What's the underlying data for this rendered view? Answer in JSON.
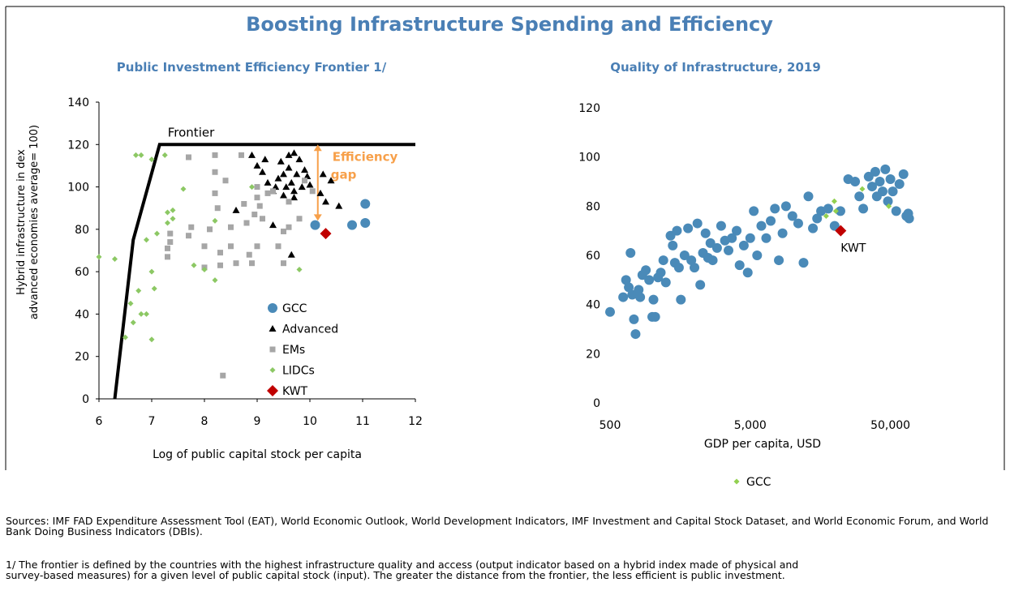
{
  "header": {
    "title": "Boosting Infrastructure Spending and Efficiency"
  },
  "chart_data": [
    {
      "type": "scatter",
      "title": "Public Investment Efficiency Frontier 1/",
      "xlabel": "Log of public capital stock per capita",
      "ylabel": [
        "Hybrid infrastructure in dex",
        "advanced economies average= 100)"
      ],
      "xlim": [
        6,
        12
      ],
      "ylim": [
        0,
        140
      ],
      "xticks": [
        6,
        7,
        8,
        9,
        10,
        11,
        12
      ],
      "yticks": [
        0,
        20,
        40,
        60,
        80,
        100,
        120,
        140
      ],
      "frontier": {
        "label": "Frontier",
        "color": "#000000",
        "x": [
          6.3,
          6.65,
          7.15,
          12
        ],
        "y": [
          0,
          75,
          120,
          120
        ]
      },
      "annotation": {
        "text": [
          "Efficiency",
          "gap"
        ],
        "color": "#f7a04a",
        "x": 10.15,
        "y": [
          120,
          84
        ]
      },
      "series": [
        {
          "name": "GCC",
          "color": "#4a8ab8",
          "marker": "circle",
          "x": [
            10.1,
            10.8,
            11.05,
            11.05
          ],
          "values": [
            82,
            82,
            83,
            92
          ]
        },
        {
          "name": "Advanced",
          "color": "#000000",
          "marker": "triangle",
          "x": [
            8.6,
            8.9,
            9.0,
            9.1,
            9.15,
            9.2,
            9.3,
            9.3,
            9.35,
            9.4,
            9.45,
            9.5,
            9.5,
            9.55,
            9.6,
            9.6,
            9.65,
            9.7,
            9.7,
            9.75,
            9.8,
            9.85,
            9.9,
            9.95,
            10.0,
            9.65,
            9.7,
            10.2,
            10.25,
            10.3,
            10.4,
            10.55
          ],
          "values": [
            89,
            115,
            110,
            107,
            113,
            102,
            82,
            98,
            100,
            104,
            112,
            96,
            106,
            100,
            115,
            109,
            102,
            98,
            95,
            106,
            113,
            100,
            108,
            105,
            101,
            68,
            116,
            97,
            106,
            93,
            103,
            91
          ]
        },
        {
          "name": "EMs",
          "color": "#a6a6a6",
          "marker": "square",
          "x": [
            7.3,
            7.35,
            7.35,
            7.3,
            7.7,
            7.7,
            7.75,
            8.0,
            8.0,
            8.1,
            8.2,
            8.2,
            8.2,
            8.25,
            8.3,
            8.3,
            8.35,
            8.4,
            8.5,
            8.5,
            8.6,
            8.7,
            8.75,
            8.8,
            8.85,
            8.9,
            8.95,
            9.0,
            9.0,
            9.0,
            9.05,
            9.1,
            9.2,
            9.3,
            9.4,
            9.5,
            9.5,
            9.6,
            9.6,
            9.9,
            10.05,
            9.8
          ],
          "values": [
            71,
            74,
            78,
            67,
            114,
            77,
            81,
            72,
            62,
            80,
            115,
            107,
            97,
            90,
            69,
            63,
            11,
            103,
            81,
            72,
            64,
            115,
            92,
            83,
            68,
            64,
            87,
            95,
            100,
            72,
            91,
            85,
            97,
            98,
            72,
            64,
            79,
            93,
            81,
            103,
            98,
            85
          ]
        },
        {
          "name": "LIDCs",
          "color": "#8cc864",
          "marker": "smalldiamond",
          "x": [
            6.0,
            6.3,
            6.5,
            6.6,
            6.7,
            6.8,
            6.65,
            6.75,
            6.8,
            6.9,
            6.9,
            7.0,
            7.0,
            7.05,
            7.1,
            7.25,
            7.3,
            7.3,
            7.4,
            7.4,
            7.6,
            7.8,
            8.0,
            8.2,
            8.2,
            8.9,
            9.8,
            7.0
          ],
          "values": [
            67,
            66,
            29,
            45,
            115,
            115,
            36,
            51,
            40,
            40,
            75,
            28,
            60,
            52,
            78,
            115,
            83,
            88,
            89,
            85,
            99,
            63,
            61,
            56,
            84,
            100,
            61,
            113
          ]
        },
        {
          "name": "KWT",
          "color": "#c00000",
          "marker": "diamond",
          "x": [
            10.3
          ],
          "values": [
            78
          ]
        }
      ]
    },
    {
      "type": "scatter",
      "title": "Quality of Infrastructure, 2019",
      "xlabel": "GDP per capita, USD",
      "xscale": "log",
      "xlim": [
        500,
        75000
      ],
      "ylim": [
        0,
        120
      ],
      "xticks": [
        500,
        {
          "value": 5000,
          "label": "5,000"
        },
        {
          "value": 50000,
          "label": "50,000"
        }
      ],
      "yticks": [
        0,
        20,
        40,
        60,
        80,
        100,
        120
      ],
      "point_label": {
        "text": "KWT",
        "series": 2
      },
      "series": [
        {
          "color": "#4a8ab8",
          "marker": "circle",
          "x": [
            500,
            620,
            650,
            680,
            700,
            720,
            740,
            760,
            800,
            820,
            850,
            900,
            950,
            1000,
            1020,
            1050,
            1100,
            1150,
            1200,
            1250,
            1350,
            1400,
            1450,
            1500,
            1550,
            1600,
            1700,
            1800,
            1900,
            2000,
            2100,
            2200,
            2300,
            2400,
            2500,
            2600,
            2700,
            2900,
            3100,
            3300,
            3500,
            3700,
            4000,
            4200,
            4500,
            4800,
            5000,
            5300,
            5600,
            6000,
            6500,
            7000,
            7500,
            8000,
            8500,
            9000,
            10000,
            11000,
            12000,
            13000,
            14000,
            15000,
            16000,
            18000,
            20000,
            22000,
            25000,
            28000,
            30000,
            32000,
            35000,
            37000,
            39000,
            40000,
            42000,
            44000,
            46000,
            48000,
            50000,
            52000,
            55000,
            58000,
            62000,
            65000,
            68000,
            67000
          ],
          "values": [
            37,
            43,
            50,
            47,
            61,
            44,
            34,
            28,
            46,
            43,
            52,
            54,
            50,
            35,
            42,
            35,
            51,
            53,
            58,
            49,
            68,
            64,
            57,
            70,
            55,
            42,
            60,
            71,
            58,
            55,
            73,
            48,
            61,
            69,
            59,
            65,
            58,
            63,
            72,
            66,
            62,
            67,
            70,
            56,
            64,
            53,
            67,
            78,
            60,
            72,
            67,
            74,
            79,
            58,
            69,
            80,
            76,
            73,
            57,
            84,
            71,
            75,
            78,
            79,
            72,
            78,
            91,
            90,
            84,
            79,
            92,
            88,
            94,
            84,
            90,
            86,
            95,
            82,
            91,
            86,
            78,
            89,
            93,
            76,
            75,
            77
          ]
        },
        {
          "name": "GCC",
          "color": "#92d050",
          "marker": "smalldiamond",
          "x": [
            19900,
            17400,
            20400,
            31500,
            48700
          ],
          "values": [
            82,
            76,
            78,
            87,
            80
          ]
        },
        {
          "color": "#c00000",
          "marker": "diamond",
          "x": [
            22100
          ],
          "values": [
            70
          ]
        }
      ]
    }
  ],
  "notes": {
    "sources": "Sources: IMF FAD Expenditure Assessment Tool (EAT), World Economic Outlook, World Development Indicators, IMF Investment and Capital Stock Dataset, and World Economic Forum, and World Bank Doing Business Indicators (DBIs).",
    "footnote": "1/ The frontier is defined by the countries with the highest infrastructure quality and access (output indicator based on a hybrid index made of physical and survey-based measures) for a given level of public capital stock (input). The greater the distance from the frontier, the less efficient is public investment."
  }
}
